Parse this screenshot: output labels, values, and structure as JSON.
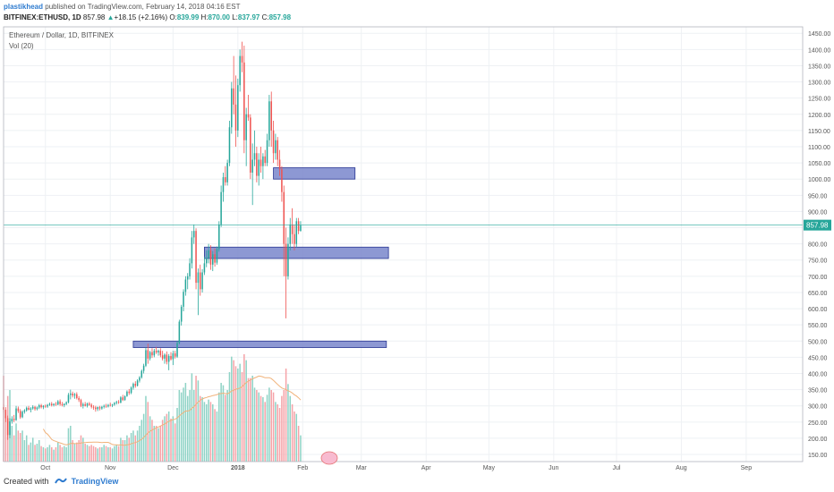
{
  "header": {
    "author": "plastikhead",
    "published_text": "published on TradingView.com, February 14, 2018 04:16 EST",
    "symbol": "BITFINEX:ETHUSD, 1D",
    "last": "857.98",
    "change_arrow": "▲",
    "change": "+18.15 (+2.16%)",
    "o_label": "O:",
    "o": "839.99",
    "h_label": "H:",
    "h": "870.00",
    "l_label": "L:",
    "l": "837.97",
    "c_label": "C:",
    "c": "857.98"
  },
  "legend": {
    "title": "Ethereum / Dollar, 1D, BITFINEX",
    "volume": "Vol (20)"
  },
  "footer": {
    "created_with": "Created with",
    "brand": "TradingView"
  },
  "colors": {
    "up": "#26a69a",
    "down": "#ef5350",
    "vol_up": "#8fd3c6",
    "vol_down": "#f5a3a8",
    "vol_ma": "#f0b27a",
    "zone_fill": "#7986cb",
    "zone_stroke": "#283593",
    "price_line": "#26a69a",
    "grid": "#eef1f4",
    "axis_text": "#555555"
  },
  "chart_data": {
    "type": "candlestick",
    "title": "Ethereum / Dollar, 1D, BITFINEX",
    "ylim": [
      128,
      1470
    ],
    "y_ticks": [
      150,
      200,
      250,
      300,
      350,
      400,
      450,
      500,
      550,
      600,
      650,
      700,
      750,
      800,
      850,
      900,
      950,
      1000,
      1050,
      1100,
      1150,
      1200,
      1250,
      1300,
      1350,
      1400,
      1450
    ],
    "x_ticks": [
      {
        "label": "Oct",
        "date": "2017-10-01",
        "bold": false
      },
      {
        "label": "Nov",
        "date": "2017-11-01",
        "bold": false
      },
      {
        "label": "Dec",
        "date": "2017-12-01",
        "bold": false
      },
      {
        "label": "2018",
        "date": "2018-01-01",
        "bold": true
      },
      {
        "label": "Feb",
        "date": "2018-02-01",
        "bold": false
      },
      {
        "label": "Mar",
        "date": "2018-03-01",
        "bold": false
      },
      {
        "label": "Apr",
        "date": "2018-04-01",
        "bold": false
      },
      {
        "label": "May",
        "date": "2018-05-01",
        "bold": false
      },
      {
        "label": "Jun",
        "date": "2018-06-01",
        "bold": false
      },
      {
        "label": "Jul",
        "date": "2018-07-01",
        "bold": false
      },
      {
        "label": "Aug",
        "date": "2018-08-01",
        "bold": false
      },
      {
        "label": "Sep",
        "date": "2018-09-01",
        "bold": false
      }
    ],
    "x_range": [
      "2017-09-11",
      "2018-09-28"
    ],
    "last_price": 857.98,
    "last_price_label": "857.98",
    "zones": [
      {
        "from": "2018-01-18",
        "to": "2018-02-26",
        "low": 1000,
        "high": 1035
      },
      {
        "from": "2017-12-16",
        "to": "2018-03-14",
        "low": 755,
        "high": 790
      },
      {
        "from": "2017-11-12",
        "to": "2018-03-13",
        "low": 480,
        "high": 500
      }
    ],
    "ohlc": {
      "start": "2017-09-11",
      "columns": [
        "open",
        "high",
        "low",
        "close",
        "volume"
      ],
      "rows": [
        [
          296,
          305,
          280,
          288,
          72
        ],
        [
          288,
          296,
          250,
          262,
          38
        ],
        [
          262,
          270,
          195,
          210,
          55
        ],
        [
          210,
          262,
          200,
          252,
          60
        ],
        [
          252,
          268,
          245,
          260,
          30
        ],
        [
          260,
          272,
          250,
          256,
          22
        ],
        [
          256,
          300,
          254,
          292,
          32
        ],
        [
          292,
          298,
          278,
          284,
          26
        ],
        [
          284,
          290,
          260,
          265,
          24
        ],
        [
          265,
          286,
          262,
          282,
          26
        ],
        [
          282,
          290,
          276,
          286,
          18
        ],
        [
          286,
          298,
          282,
          294,
          22
        ],
        [
          294,
          300,
          286,
          288,
          14
        ],
        [
          288,
          296,
          280,
          292,
          16
        ],
        [
          292,
          302,
          288,
          297,
          20
        ],
        [
          297,
          300,
          285,
          290,
          14
        ],
        [
          290,
          298,
          286,
          295,
          15
        ],
        [
          295,
          306,
          290,
          302,
          18
        ],
        [
          302,
          306,
          292,
          296,
          13
        ],
        [
          296,
          302,
          290,
          300,
          12
        ],
        [
          300,
          304,
          294,
          298,
          11
        ],
        [
          298,
          306,
          294,
          303,
          12
        ],
        [
          303,
          310,
          300,
          306,
          14
        ],
        [
          306,
          312,
          298,
          302,
          12
        ],
        [
          302,
          308,
          298,
          306,
          10
        ],
        [
          306,
          312,
          300,
          304,
          12
        ],
        [
          304,
          318,
          302,
          314,
          16
        ],
        [
          314,
          320,
          300,
          305,
          14
        ],
        [
          305,
          312,
          298,
          302,
          12
        ],
        [
          302,
          308,
          296,
          306,
          13
        ],
        [
          306,
          314,
          302,
          311,
          12
        ],
        [
          311,
          340,
          308,
          334,
          28
        ],
        [
          334,
          350,
          320,
          338,
          30
        ],
        [
          338,
          344,
          326,
          332,
          18
        ],
        [
          332,
          340,
          322,
          336,
          15
        ],
        [
          336,
          342,
          320,
          324,
          16
        ],
        [
          324,
          330,
          312,
          318,
          18
        ],
        [
          318,
          322,
          296,
          300,
          22
        ],
        [
          300,
          310,
          292,
          305,
          20
        ],
        [
          305,
          312,
          298,
          300,
          15
        ],
        [
          300,
          310,
          295,
          307,
          14
        ],
        [
          307,
          312,
          300,
          303,
          13
        ],
        [
          303,
          308,
          292,
          297,
          14
        ],
        [
          297,
          302,
          288,
          295,
          13
        ],
        [
          295,
          300,
          282,
          290,
          12
        ],
        [
          290,
          298,
          284,
          296,
          11
        ],
        [
          296,
          300,
          286,
          292,
          12
        ],
        [
          292,
          300,
          288,
          297,
          12
        ],
        [
          297,
          304,
          292,
          300,
          14
        ],
        [
          300,
          306,
          294,
          298,
          13
        ],
        [
          298,
          306,
          295,
          303,
          12
        ],
        [
          303,
          310,
          298,
          301,
          12
        ],
        [
          301,
          306,
          296,
          304,
          11
        ],
        [
          304,
          312,
          300,
          309,
          13
        ],
        [
          309,
          316,
          304,
          312,
          14
        ],
        [
          312,
          318,
          306,
          310,
          13
        ],
        [
          310,
          330,
          308,
          326,
          20
        ],
        [
          326,
          334,
          315,
          318,
          18
        ],
        [
          318,
          332,
          316,
          330,
          18
        ],
        [
          330,
          348,
          328,
          344,
          22
        ],
        [
          344,
          352,
          334,
          340,
          20
        ],
        [
          340,
          360,
          336,
          356,
          24
        ],
        [
          356,
          372,
          350,
          368,
          26
        ],
        [
          368,
          376,
          356,
          362,
          22
        ],
        [
          362,
          382,
          360,
          378,
          26
        ],
        [
          378,
          392,
          372,
          388,
          30
        ],
        [
          388,
          412,
          384,
          408,
          35
        ],
        [
          408,
          430,
          400,
          424,
          40
        ],
        [
          424,
          480,
          420,
          472,
          55
        ],
        [
          472,
          492,
          430,
          446,
          50
        ],
        [
          446,
          470,
          440,
          466,
          38
        ],
        [
          466,
          478,
          448,
          456,
          35
        ],
        [
          456,
          476,
          450,
          470,
          30
        ],
        [
          470,
          482,
          460,
          465,
          30
        ],
        [
          465,
          474,
          455,
          470,
          28
        ],
        [
          470,
          478,
          450,
          456,
          30
        ],
        [
          456,
          470,
          440,
          446,
          35
        ],
        [
          446,
          462,
          430,
          458,
          38
        ],
        [
          458,
          468,
          428,
          436,
          40
        ],
        [
          436,
          460,
          410,
          454,
          42
        ],
        [
          454,
          466,
          440,
          444,
          36
        ],
        [
          444,
          470,
          426,
          462,
          38
        ],
        [
          462,
          470,
          446,
          452,
          32
        ],
        [
          452,
          500,
          448,
          494,
          45
        ],
        [
          494,
          566,
          490,
          560,
          60
        ],
        [
          560,
          612,
          548,
          606,
          58
        ],
        [
          606,
          660,
          592,
          652,
          62
        ],
        [
          652,
          700,
          640,
          690,
          66
        ],
        [
          690,
          710,
          660,
          700,
          55
        ],
        [
          700,
          756,
          690,
          740,
          60
        ],
        [
          740,
          840,
          724,
          820,
          74
        ],
        [
          820,
          860,
          800,
          840,
          60
        ],
        [
          840,
          848,
          660,
          680,
          72
        ],
        [
          680,
          724,
          580,
          712,
          68
        ],
        [
          712,
          736,
          640,
          660,
          55
        ],
        [
          660,
          722,
          650,
          712,
          54
        ],
        [
          712,
          760,
          704,
          740,
          50
        ],
        [
          740,
          780,
          728,
          756,
          48
        ],
        [
          756,
          800,
          740,
          780,
          52
        ],
        [
          780,
          796,
          720,
          736,
          50
        ],
        [
          736,
          778,
          716,
          768,
          48
        ],
        [
          768,
          786,
          730,
          742,
          44
        ],
        [
          742,
          792,
          736,
          784,
          42
        ],
        [
          784,
          870,
          776,
          860,
          58
        ],
        [
          860,
          980,
          852,
          960,
          66
        ],
        [
          960,
          1020,
          930,
          1006,
          64
        ],
        [
          1006,
          1040,
          980,
          990,
          56
        ],
        [
          990,
          1060,
          980,
          1050,
          60
        ],
        [
          1050,
          1180,
          1040,
          1160,
          75
        ],
        [
          1160,
          1300,
          1140,
          1280,
          88
        ],
        [
          1280,
          1380,
          1200,
          1230,
          85
        ],
        [
          1230,
          1320,
          1100,
          1150,
          80
        ],
        [
          1150,
          1310,
          1130,
          1290,
          78
        ],
        [
          1290,
          1400,
          1270,
          1380,
          82
        ],
        [
          1380,
          1424,
          1330,
          1360,
          75
        ],
        [
          1360,
          1412,
          1080,
          1120,
          90
        ],
        [
          1120,
          1220,
          1040,
          1200,
          85
        ],
        [
          1200,
          1260,
          1180,
          1190,
          70
        ],
        [
          1190,
          1200,
          1000,
          1020,
          70
        ],
        [
          1020,
          1110,
          920,
          1060,
          72
        ],
        [
          1060,
          1150,
          1040,
          1080,
          62
        ],
        [
          1080,
          1100,
          990,
          1010,
          60
        ],
        [
          1010,
          1080,
          980,
          1060,
          58
        ],
        [
          1060,
          1100,
          1020,
          1040,
          55
        ],
        [
          1040,
          1080,
          1000,
          1070,
          54
        ],
        [
          1070,
          1090,
          1040,
          1050,
          50
        ],
        [
          1050,
          1140,
          1040,
          1120,
          56
        ],
        [
          1120,
          1260,
          1100,
          1240,
          62
        ],
        [
          1240,
          1270,
          1100,
          1150,
          60
        ],
        [
          1150,
          1180,
          1050,
          1080,
          58
        ],
        [
          1080,
          1140,
          1060,
          1120,
          50
        ],
        [
          1120,
          1130,
          1040,
          1060,
          48
        ],
        [
          1060,
          1090,
          1010,
          1030,
          45
        ],
        [
          1030,
          1040,
          930,
          960,
          55
        ],
        [
          960,
          980,
          700,
          800,
          60
        ],
        [
          800,
          850,
          570,
          700,
          78
        ],
        [
          700,
          820,
          690,
          800,
          65
        ],
        [
          800,
          880,
          780,
          860,
          55
        ],
        [
          860,
          910,
          800,
          830,
          48
        ],
        [
          830,
          860,
          780,
          800,
          42
        ],
        [
          800,
          880,
          790,
          870,
          40
        ],
        [
          870,
          880,
          830,
          840,
          30
        ],
        [
          840,
          870,
          838,
          858,
          22
        ]
      ]
    }
  }
}
